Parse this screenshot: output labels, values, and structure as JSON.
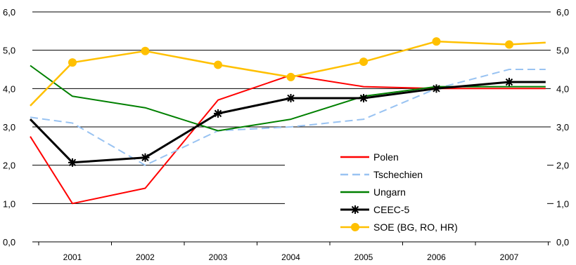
{
  "chart_data": {
    "type": "line",
    "title": "",
    "xlabel": "",
    "ylabel": "",
    "ylim": [
      0,
      6
    ],
    "yticks": [
      "0,0",
      "1,0",
      "2,0",
      "3,0",
      "4,0",
      "5,0",
      "6,0"
    ],
    "categories": [
      "2001",
      "2002",
      "2003",
      "2004",
      "2005",
      "2006",
      "2007"
    ],
    "x": [
      2000.0,
      2000.3,
      2001.0,
      2001.5,
      2002.0,
      2002.5,
      2003.0,
      2003.5,
      2004.0,
      2004.5,
      2005.0,
      2005.5,
      2006.0,
      2006.5,
      2007.0,
      2007.5
    ],
    "grid": "horizontal",
    "legend_position": "bottom-right",
    "series": [
      {
        "name": "Polen",
        "color": "#ff0000",
        "dash": "solid",
        "marker": "none",
        "x": [
          2000.0,
          2001.0,
          2002.0,
          2003.0,
          2004.0,
          2005.0,
          2006.0,
          2007.0,
          2007.5
        ],
        "values": [
          2.75,
          1.0,
          1.4,
          3.7,
          4.35,
          4.05,
          4.0,
          4.0,
          4.0
        ]
      },
      {
        "name": "Tschechien",
        "color": "#99c3f2",
        "dash": "dashed",
        "marker": "none",
        "x": [
          2000.0,
          2001.0,
          2002.0,
          2003.0,
          2004.0,
          2005.0,
          2006.0,
          2007.0,
          2007.5
        ],
        "values": [
          3.25,
          3.1,
          2.0,
          2.9,
          3.0,
          3.2,
          4.0,
          4.5,
          4.5
        ]
      },
      {
        "name": "Ungarn",
        "color": "#008000",
        "dash": "solid",
        "marker": "none",
        "x": [
          2000.0,
          2001.0,
          2002.0,
          2003.0,
          2004.0,
          2005.0,
          2006.0,
          2007.0,
          2007.5
        ],
        "values": [
          4.6,
          3.8,
          3.5,
          2.9,
          3.2,
          3.8,
          4.05,
          4.05,
          4.05
        ]
      },
      {
        "name": "CEEC-5",
        "color": "#000000",
        "dash": "solid",
        "marker": "asterisk",
        "x": [
          2000.0,
          2001.0,
          2002.0,
          2003.0,
          2004.0,
          2005.0,
          2006.0,
          2007.0,
          2007.5
        ],
        "values": [
          3.2,
          2.07,
          2.2,
          3.35,
          3.75,
          3.75,
          4.0,
          4.17,
          4.17
        ]
      },
      {
        "name": "SOE (BG, RO, HR)",
        "color": "#ffc000",
        "dash": "solid",
        "marker": "circle",
        "x": [
          2000.0,
          2001.0,
          2002.0,
          2003.0,
          2004.0,
          2005.0,
          2006.0,
          2007.0,
          2007.5
        ],
        "values": [
          3.55,
          4.68,
          4.98,
          4.62,
          4.3,
          4.7,
          5.23,
          5.15,
          5.2
        ]
      }
    ]
  }
}
